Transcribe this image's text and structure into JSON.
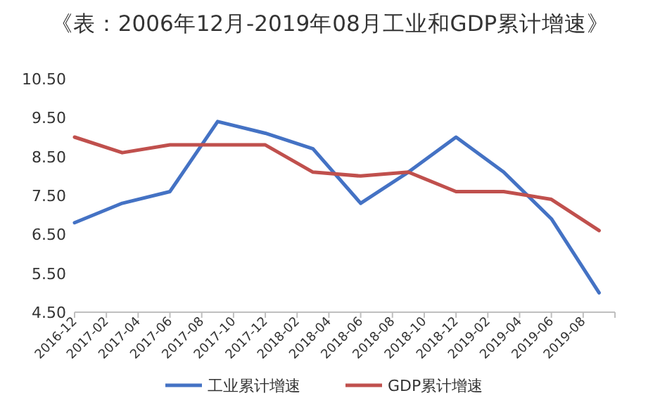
{
  "chart_data": {
    "type": "line",
    "title": "《表：2006年12月-2019年08月工业和GDP累计增速》",
    "x": [
      "2016-12",
      "2017-03",
      "2017-06",
      "2017-09",
      "2017-12",
      "2018-03",
      "2018-06",
      "2018-09",
      "2018-12",
      "2019-03",
      "2019-06",
      "2019-09"
    ],
    "series": [
      {
        "name": "工业累计增速",
        "color": "#4472c4",
        "values": [
          6.8,
          7.3,
          7.6,
          9.4,
          9.1,
          8.7,
          7.3,
          8.1,
          9.0,
          8.1,
          6.9,
          5.0
        ]
      },
      {
        "name": "GDP累计增速",
        "color": "#c0504d",
        "values": [
          9.0,
          8.6,
          8.8,
          8.8,
          8.8,
          8.1,
          8.0,
          8.1,
          7.6,
          7.6,
          7.4,
          6.6
        ]
      }
    ],
    "xlim": [
      "2016-12",
      "2019-10"
    ],
    "xticks": [
      {
        "value": "2016-12",
        "label": "2016-12"
      },
      {
        "value": "2017-02",
        "label": "2017-02"
      },
      {
        "value": "2017-04",
        "label": "2017-04"
      },
      {
        "value": "2017-06",
        "label": "2017-06"
      },
      {
        "value": "2017-08",
        "label": "2017-08"
      },
      {
        "value": "2017-10",
        "label": "2017-10"
      },
      {
        "value": "2017-12",
        "label": "2017-12"
      },
      {
        "value": "2018-02",
        "label": "2018-02"
      },
      {
        "value": "2018-04",
        "label": "2018-04"
      },
      {
        "value": "2018-06",
        "label": "2018-06"
      },
      {
        "value": "2018-08",
        "label": "2018-08"
      },
      {
        "value": "2018-10",
        "label": "2018-10"
      },
      {
        "value": "2018-12",
        "label": "2018-12"
      },
      {
        "value": "2019-02",
        "label": "2019-02"
      },
      {
        "value": "2019-04",
        "label": "2019-04"
      },
      {
        "value": "2019-06",
        "label": "2019-06"
      },
      {
        "value": "2019-08",
        "label": "2019-08"
      },
      {
        "value": "2019-10",
        "label": null
      }
    ],
    "ylim": [
      4.5,
      10.5
    ],
    "yticks": [
      {
        "value": 4.5,
        "label": "4.50"
      },
      {
        "value": 5.5,
        "label": "5.50"
      },
      {
        "value": 6.5,
        "label": "6.50"
      },
      {
        "value": 7.5,
        "label": "7.50"
      },
      {
        "value": 8.5,
        "label": "8.50"
      },
      {
        "value": 9.5,
        "label": "9.50"
      },
      {
        "value": 10.5,
        "label": "10.50"
      }
    ],
    "grid": false,
    "legend": "bottom",
    "marker": "none",
    "line_style": "solid"
  }
}
